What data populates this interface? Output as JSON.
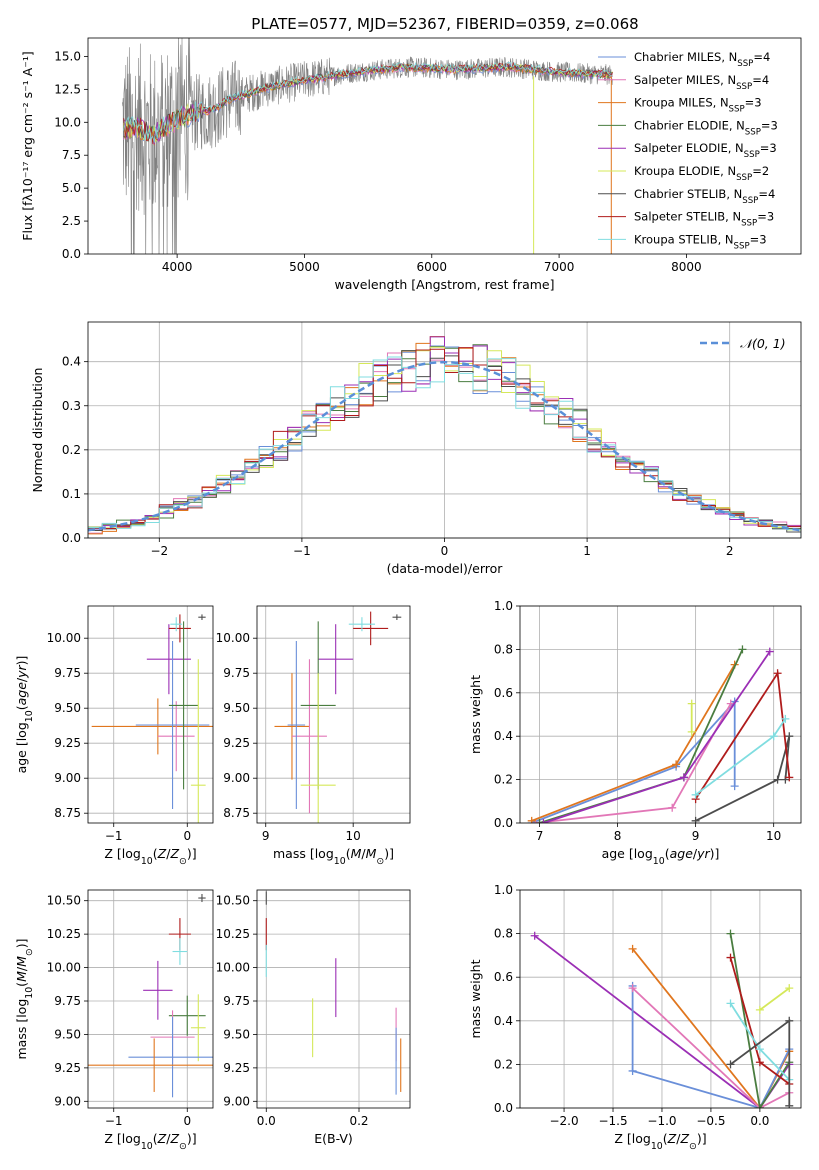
{
  "figure": {
    "title": "PLATE=0577, MJD=52367, FIBERID=0359, z=0.068"
  },
  "chart_data": [
    {
      "id": "spectrum",
      "type": "line",
      "xlabel": "wavelength [Angstrom, rest frame]",
      "ylabel": "Flux [fλ10⁻¹⁷ erg cm⁻² s⁻¹ A⁻¹]",
      "xlim": [
        3300,
        8900
      ],
      "ylim": [
        0,
        16.4
      ],
      "xticks": [
        4000,
        5000,
        6000,
        7000,
        8000
      ],
      "yticks": [
        0.0,
        2.5,
        5.0,
        7.5,
        10.0,
        12.5,
        15.0
      ],
      "legend_position": "upper-right",
      "data_series": {
        "name": "",
        "color": "#808080",
        "x_range": [
          3570,
          7420
        ],
        "anchors": [
          [
            3570,
            9.5
          ],
          [
            3700,
            9.6
          ],
          [
            3800,
            9.0
          ],
          [
            3900,
            9.6
          ],
          [
            4000,
            10.2
          ],
          [
            4100,
            10.6
          ],
          [
            4200,
            10.8
          ],
          [
            4300,
            11.0
          ],
          [
            4400,
            11.7
          ],
          [
            4500,
            12.0
          ],
          [
            4600,
            12.3
          ],
          [
            4700,
            12.6
          ],
          [
            4800,
            12.8
          ],
          [
            4900,
            13.0
          ],
          [
            5000,
            13.2
          ],
          [
            5200,
            13.5
          ],
          [
            5400,
            13.8
          ],
          [
            5600,
            14.0
          ],
          [
            5800,
            14.2
          ],
          [
            6000,
            14.1
          ],
          [
            6200,
            14.0
          ],
          [
            6400,
            14.1
          ],
          [
            6600,
            14.2
          ],
          [
            6800,
            14.0
          ],
          [
            7000,
            13.8
          ],
          [
            7200,
            13.7
          ],
          [
            7420,
            13.6
          ]
        ]
      },
      "model_series": [
        {
          "name": "Chabrier MILES, N<sub>SSP</sub>=4",
          "color": "#6a8fd9"
        },
        {
          "name": "Salpeter MILES, N<sub>SSP</sub>=4",
          "color": "#e277b7"
        },
        {
          "name": "Kroupa MILES, N<sub>SSP</sub>=3",
          "color": "#e0761e"
        },
        {
          "name": "Chabrier ELODIE, N<sub>SSP</sub>=3",
          "color": "#4a7d40"
        },
        {
          "name": "Salpeter ELODIE, N<sub>SSP</sub>=3",
          "color": "#9b2fb5"
        },
        {
          "name": "Kroupa ELODIE, N<sub>SSP</sub>=2",
          "color": "#d5e85a"
        },
        {
          "name": "Chabrier STELIB, N<sub>SSP</sub>=4",
          "color": "#4d4d4d"
        },
        {
          "name": "Salpeter STELIB, N<sub>SSP</sub>=3",
          "color": "#b01c1c"
        },
        {
          "name": "Kroupa STELIB, N<sub>SSP</sub>=3",
          "color": "#80dde0"
        }
      ]
    },
    {
      "id": "residuals",
      "type": "step",
      "xlabel": "(data-model)/error",
      "ylabel": "Normed distribution",
      "xlim": [
        -2.5,
        2.5
      ],
      "ylim": [
        0,
        0.49
      ],
      "xticks": [
        -2,
        -1,
        0,
        1,
        2
      ],
      "yticks": [
        0.0,
        0.1,
        0.2,
        0.3,
        0.4
      ],
      "grid": true,
      "bin_edges_start": -2.5,
      "bin_width": 0.1,
      "reference_curve": {
        "name": "𝒩(0, 1)",
        "style": "dashed",
        "color": "#5a8fd8",
        "sigma": 1.0
      },
      "legend_position": "upper-right"
    },
    {
      "id": "age_vs_Z",
      "type": "errorbar",
      "xlabel": "Z [log<sub>10</sub>(<i>Z</i>/<i>Z</i><sub>⊙</sub>)]",
      "ylabel": "age  [log<sub>10</sub>(<i>age</i>/<i>yr</i>)]",
      "xlim": [
        -1.35,
        0.35
      ],
      "ylim": [
        8.68,
        10.23
      ],
      "xticks": [
        -1,
        0
      ],
      "yticks": [
        8.75,
        9.0,
        9.25,
        9.5,
        9.75,
        10.0
      ],
      "grid": true,
      "points": [
        {
          "x": -0.25,
          "xerr": 0.3,
          "y": 9.85,
          "yerr": 0.25,
          "color": "#9b2fb5"
        },
        {
          "x": -0.1,
          "xerr": 0.15,
          "y": 10.07,
          "yerr": 0.1,
          "color": "#b01c1c"
        },
        {
          "x": -0.15,
          "xerr": 0.08,
          "y": 10.1,
          "yerr": 0.05,
          "color": "#80dde0"
        },
        {
          "x": -0.4,
          "xerr": 0.9,
          "y": 9.37,
          "yerr": 0.2,
          "color": "#e0761e"
        },
        {
          "x": -0.15,
          "xerr": 0.25,
          "y": 9.3,
          "yerr": 0.25,
          "color": "#e277b7"
        },
        {
          "x": -0.2,
          "xerr": 0.5,
          "y": 9.38,
          "yerr": 0.6,
          "color": "#6a8fd9"
        },
        {
          "x": -0.05,
          "xerr": 0.2,
          "y": 9.52,
          "yerr": 0.6,
          "color": "#4a7d40"
        },
        {
          "x": 0.15,
          "xerr": 0.1,
          "y": 8.95,
          "yerr": 0.9,
          "color": "#d5e85a"
        },
        {
          "x": 0.2,
          "xerr": 0.05,
          "y": 10.15,
          "yerr": 0.02,
          "color": "#4d4d4d"
        }
      ]
    },
    {
      "id": "age_vs_mass",
      "type": "errorbar",
      "xlabel": "mass [log<sub>10</sub>(<i>M</i>/<i>M</i><sub>⊙</sub>)]",
      "ylabel": "",
      "xlim": [
        8.9,
        10.65
      ],
      "ylim": [
        8.68,
        10.23
      ],
      "xticks": [
        9,
        10
      ],
      "yticks": [
        8.75,
        9.0,
        9.25,
        9.5,
        9.75,
        10.0
      ],
      "grid": true,
      "points": [
        {
          "x": 10.2,
          "xerr": 0.2,
          "y": 10.07,
          "yerr": 0.12,
          "color": "#b01c1c"
        },
        {
          "x": 10.1,
          "xerr": 0.15,
          "y": 10.1,
          "yerr": 0.05,
          "color": "#80dde0"
        },
        {
          "x": 9.8,
          "xerr": 0.2,
          "y": 9.85,
          "yerr": 0.25,
          "color": "#9b2fb5"
        },
        {
          "x": 9.3,
          "xerr": 0.2,
          "y": 9.37,
          "yerr": 0.38,
          "color": "#e0761e"
        },
        {
          "x": 9.5,
          "xerr": 0.2,
          "y": 9.3,
          "yerr": 0.55,
          "color": "#e277b7"
        },
        {
          "x": 9.35,
          "xerr": 0.1,
          "y": 9.38,
          "yerr": 0.6,
          "color": "#6a8fd9"
        },
        {
          "x": 9.6,
          "xerr": 0.2,
          "y": 9.52,
          "yerr": 0.6,
          "color": "#4a7d40"
        },
        {
          "x": 9.6,
          "xerr": 0.2,
          "y": 8.95,
          "yerr": 0.8,
          "color": "#d5e85a"
        },
        {
          "x": 10.5,
          "xerr": 0.05,
          "y": 10.15,
          "yerr": 0.02,
          "color": "#4d4d4d"
        }
      ]
    },
    {
      "id": "weight_vs_age",
      "type": "line",
      "xlabel": "age  [log<sub>10</sub>(<i>age</i>/<i>yr</i>)]",
      "ylabel": "mass weight",
      "xlim": [
        6.75,
        10.35
      ],
      "ylim": [
        0,
        1
      ],
      "xticks": [
        7,
        8,
        9,
        10
      ],
      "yticks": [
        0.0,
        0.2,
        0.4,
        0.6,
        0.8,
        1.0
      ],
      "grid": true,
      "series": [
        {
          "color": "#6a8fd9",
          "points": [
            [
              6.9,
              0.0
            ],
            [
              8.75,
              0.26
            ],
            [
              9.5,
              0.56
            ],
            [
              9.5,
              0.17
            ]
          ]
        },
        {
          "color": "#e277b7",
          "points": [
            [
              6.95,
              0.0
            ],
            [
              8.7,
              0.07
            ],
            [
              9.45,
              0.55
            ]
          ]
        },
        {
          "color": "#e0761e",
          "points": [
            [
              6.9,
              0.01
            ],
            [
              8.75,
              0.27
            ],
            [
              9.5,
              0.73
            ]
          ]
        },
        {
          "color": "#4a7d40",
          "points": [
            [
              7.0,
              0.0
            ],
            [
              8.85,
              0.21
            ],
            [
              9.6,
              0.8
            ]
          ]
        },
        {
          "color": "#9b2fb5",
          "points": [
            [
              7.05,
              0.0
            ],
            [
              8.85,
              0.21
            ],
            [
              9.95,
              0.79
            ]
          ]
        },
        {
          "color": "#d5e85a",
          "points": [
            [
              8.95,
              0.42
            ],
            [
              8.95,
              0.55
            ]
          ]
        },
        {
          "color": "#4d4d4d",
          "points": [
            [
              9.0,
              0.01
            ],
            [
              10.05,
              0.2
            ],
            [
              10.2,
              0.4
            ],
            [
              10.15,
              0.2
            ]
          ]
        },
        {
          "color": "#b01c1c",
          "points": [
            [
              9.0,
              0.11
            ],
            [
              10.05,
              0.69
            ],
            [
              10.2,
              0.21
            ]
          ]
        },
        {
          "color": "#80dde0",
          "points": [
            [
              9.0,
              0.13
            ],
            [
              10.0,
              0.4
            ],
            [
              10.15,
              0.48
            ]
          ]
        }
      ]
    },
    {
      "id": "mass_vs_Z",
      "type": "errorbar",
      "xlabel": "Z [log<sub>10</sub>(<i>Z</i>/<i>Z</i><sub>⊙</sub>)]",
      "ylabel": "mass [log<sub>10</sub>(<i>M</i>/<i>M</i><sub>⊙</sub>)]",
      "xlim": [
        -1.35,
        0.35
      ],
      "ylim": [
        8.95,
        10.58
      ],
      "xticks": [
        -1,
        0
      ],
      "yticks": [
        9.0,
        9.25,
        9.5,
        9.75,
        10.0,
        10.25,
        10.5
      ],
      "grid": true,
      "points": [
        {
          "x": 0.2,
          "xerr": 0.05,
          "y": 10.52,
          "yerr": 0.03,
          "color": "#4d4d4d"
        },
        {
          "x": -0.1,
          "xerr": 0.15,
          "y": 10.25,
          "yerr": 0.12,
          "color": "#b01c1c"
        },
        {
          "x": -0.1,
          "xerr": 0.1,
          "y": 10.12,
          "yerr": 0.1,
          "color": "#80dde0"
        },
        {
          "x": -0.4,
          "xerr": 0.2,
          "y": 9.83,
          "yerr": 0.22,
          "color": "#9b2fb5"
        },
        {
          "x": 0.0,
          "xerr": 0.25,
          "y": 9.64,
          "yerr": 0.15,
          "color": "#4a7d40"
        },
        {
          "x": 0.15,
          "xerr": 0.1,
          "y": 9.55,
          "yerr": 0.25,
          "color": "#d5e85a"
        },
        {
          "x": -0.2,
          "xerr": 0.3,
          "y": 9.48,
          "yerr": 0.2,
          "color": "#e277b7"
        },
        {
          "x": -0.2,
          "xerr": 0.6,
          "y": 9.33,
          "yerr": 0.3,
          "color": "#6a8fd9"
        },
        {
          "x": -0.45,
          "xerr": 0.9,
          "y": 9.27,
          "yerr": 0.2,
          "color": "#e0761e"
        }
      ]
    },
    {
      "id": "mass_vs_ebv",
      "type": "errorbar",
      "xlabel": "E(B-V)",
      "ylabel": "",
      "xlim": [
        -0.02,
        0.31
      ],
      "ylim": [
        8.95,
        10.58
      ],
      "xticks": [
        0.0,
        0.2
      ],
      "yticks": [
        9.0,
        9.25,
        9.5,
        9.75,
        10.0,
        10.25,
        10.5
      ],
      "grid": true,
      "points": [
        {
          "x": 0.0,
          "xerr": 0.0,
          "y": 10.52,
          "yerr": 0.05,
          "color": "#4d4d4d"
        },
        {
          "x": 0.0,
          "xerr": 0.0,
          "y": 10.25,
          "yerr": 0.12,
          "color": "#b01c1c"
        },
        {
          "x": 0.0,
          "xerr": 0.0,
          "y": 10.05,
          "yerr": 0.12,
          "color": "#80dde0"
        },
        {
          "x": 0.15,
          "xerr": 0.0,
          "y": 9.85,
          "yerr": 0.22,
          "color": "#9b2fb5"
        },
        {
          "x": 0.1,
          "xerr": 0.0,
          "y": 9.55,
          "yerr": 0.22,
          "color": "#d5e85a"
        },
        {
          "x": 0.28,
          "xerr": 0.0,
          "y": 9.5,
          "yerr": 0.2,
          "color": "#e277b7"
        },
        {
          "x": 0.28,
          "xerr": 0.0,
          "y": 9.3,
          "yerr": 0.25,
          "color": "#6a8fd9"
        },
        {
          "x": 0.29,
          "xerr": 0.0,
          "y": 9.27,
          "yerr": 0.2,
          "color": "#e0761e"
        }
      ]
    },
    {
      "id": "weight_vs_Z",
      "type": "line",
      "xlabel": "Z [log<sub>10</sub>(<i>Z</i>/<i>Z</i><sub>⊙</sub>)]",
      "ylabel": "mass weight",
      "xlim": [
        -2.45,
        0.42
      ],
      "ylim": [
        0,
        1
      ],
      "xticks": [
        -2.0,
        -1.5,
        -1.0,
        -0.5,
        0.0
      ],
      "yticks": [
        0.0,
        0.2,
        0.4,
        0.6,
        0.8,
        1.0
      ],
      "grid": true,
      "series": [
        {
          "color": "#9b2fb5",
          "points": [
            [
              -2.3,
              0.79
            ],
            [
              0.0,
              0.0
            ],
            [
              0.3,
              0.2
            ]
          ]
        },
        {
          "color": "#e0761e",
          "points": [
            [
              -1.3,
              0.73
            ],
            [
              0.0,
              0.0
            ],
            [
              0.3,
              0.26
            ]
          ]
        },
        {
          "color": "#6a8fd9",
          "points": [
            [
              -1.3,
              0.56
            ],
            [
              -1.3,
              0.17
            ],
            [
              0.0,
              0.0
            ],
            [
              0.3,
              0.27
            ]
          ]
        },
        {
          "color": "#e277b7",
          "points": [
            [
              -1.3,
              0.55
            ],
            [
              0.0,
              0.0
            ],
            [
              0.3,
              0.07
            ]
          ]
        },
        {
          "color": "#4a7d40",
          "points": [
            [
              -0.3,
              0.8
            ],
            [
              0.0,
              0.0
            ],
            [
              0.3,
              0.21
            ]
          ]
        },
        {
          "color": "#b01c1c",
          "points": [
            [
              -0.3,
              0.69
            ],
            [
              0.0,
              0.21
            ],
            [
              0.3,
              0.11
            ]
          ]
        },
        {
          "color": "#80dde0",
          "points": [
            [
              -0.3,
              0.48
            ],
            [
              0.0,
              0.27
            ],
            [
              0.3,
              0.13
            ]
          ]
        },
        {
          "color": "#d5e85a",
          "points": [
            [
              0.0,
              0.45
            ],
            [
              0.3,
              0.55
            ]
          ]
        },
        {
          "color": "#4d4d4d",
          "points": [
            [
              -0.3,
              0.2
            ],
            [
              0.3,
              0.4
            ],
            [
              0.3,
              0.01
            ]
          ]
        }
      ]
    }
  ]
}
